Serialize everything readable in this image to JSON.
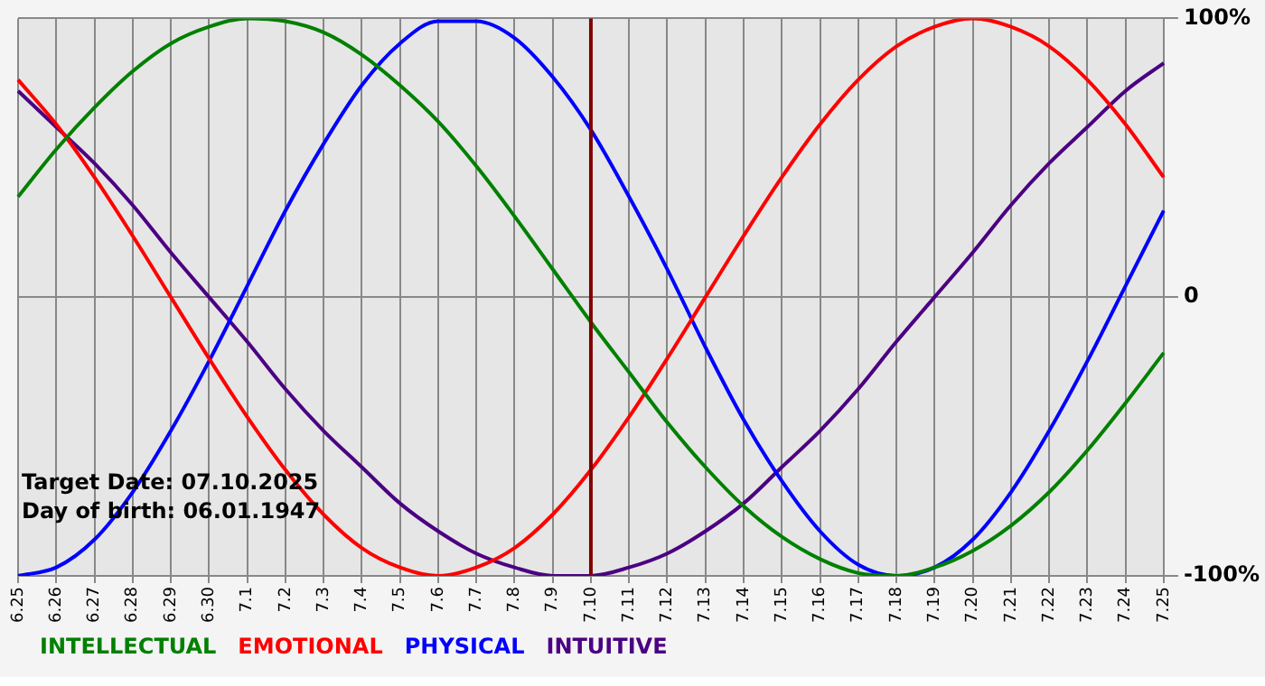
{
  "chart_data": {
    "type": "line",
    "categories": [
      "6.25",
      "6.26",
      "6.27",
      "6.28",
      "6.29",
      "6.30",
      "7.1",
      "7.2",
      "7.3",
      "7.4",
      "7.5",
      "7.6",
      "7.7",
      "7.8",
      "7.9",
      "7.10",
      "7.11",
      "7.12",
      "7.13",
      "7.14",
      "7.15",
      "7.16",
      "7.17",
      "7.18",
      "7.19",
      "7.20",
      "7.21",
      "7.22",
      "7.23",
      "7.24",
      "7.25"
    ],
    "series": [
      {
        "name": "INTELLECTUAL",
        "color": "#008000",
        "values": [
          36,
          53,
          68,
          81,
          91,
          97,
          100,
          99,
          95,
          87,
          76,
          63,
          47,
          29,
          10,
          -9,
          -27,
          -45,
          -61,
          -75,
          -86,
          -94,
          -99,
          -100,
          -97,
          -91,
          -82,
          -70,
          -55,
          -38,
          -20
        ]
      },
      {
        "name": "EMOTIONAL",
        "color": "#ff0000",
        "values": [
          78,
          62,
          43,
          22,
          0,
          -22,
          -43,
          -62,
          -78,
          -90,
          -97,
          -100,
          -97,
          -90,
          -78,
          -62,
          -43,
          -22,
          0,
          22,
          43,
          62,
          78,
          90,
          97,
          100,
          97,
          90,
          78,
          62,
          43
        ]
      },
      {
        "name": "PHYSICAL",
        "color": "#0000ff",
        "values": [
          -100,
          -97,
          -87,
          -70,
          -48,
          -23,
          4,
          31,
          55,
          76,
          91,
          99,
          99,
          93,
          79,
          60,
          36,
          10,
          -18,
          -44,
          -66,
          -84,
          -96,
          -100,
          -97,
          -87,
          -70,
          -48,
          -23,
          4,
          31
        ]
      },
      {
        "name": "INTUITIVE",
        "color": "#4b0082",
        "values": [
          74,
          61,
          48,
          33,
          16,
          0,
          -16,
          -33,
          -48,
          -61,
          -74,
          -84,
          -92,
          -97,
          -100,
          -100,
          -97,
          -92,
          -84,
          -74,
          -61,
          -48,
          -33,
          -16,
          0,
          16,
          33,
          48,
          61,
          74,
          84
        ]
      }
    ],
    "ylim": [
      -100,
      100
    ],
    "yticks": [
      {
        "value": -100,
        "label": "-100%"
      },
      0,
      {
        "value": 100,
        "label": "100%"
      }
    ],
    "grid": true,
    "legend": "bottom",
    "marker": "none",
    "line_style": "solid",
    "ref_lines": [
      {
        "axis": "x",
        "value": "7.10",
        "color": "#800000"
      }
    ],
    "annotations": [
      "Target Date: 07.10.2025",
      "Day of birth: 06.01.1947"
    ]
  }
}
